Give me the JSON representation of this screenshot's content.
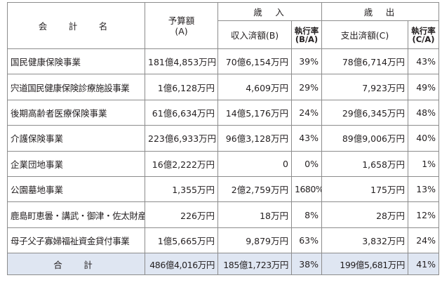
{
  "header": {
    "name": "会　計　名",
    "budget_line1": "予算額",
    "budget_line2": "(A)",
    "revenue_group": "歳　入",
    "expenditure_group": "歳　出",
    "revenue_received": "収入済額(B)",
    "revenue_rate_line1": "執行率",
    "revenue_rate_line2": "(B/A)",
    "expenditure_paid": "支出済額(C)",
    "expenditure_rate_line1": "執行率",
    "expenditure_rate_line2": "(C/A)"
  },
  "rows": [
    {
      "name": "国民健康保険事業",
      "budget": "181億4,853万円",
      "revenue": "70億6,154万円",
      "revenue_rate": "39%",
      "expenditure": "78億6,714万円",
      "expenditure_rate": "43%"
    },
    {
      "name": "宍道国民健康保険診療施設事業",
      "budget": "1億6,128万円",
      "revenue": "4,609万円",
      "revenue_rate": "29%",
      "expenditure": "7,923万円",
      "expenditure_rate": "49%"
    },
    {
      "name": "後期高齢者医療保険事業",
      "budget": "61億6,634万円",
      "revenue": "14億5,176万円",
      "revenue_rate": "24%",
      "expenditure": "29億6,345万円",
      "expenditure_rate": "48%"
    },
    {
      "name": "介護保険事業",
      "budget": "223億6,933万円",
      "revenue": "96億3,128万円",
      "revenue_rate": "43%",
      "expenditure": "89億9,006万円",
      "expenditure_rate": "40%"
    },
    {
      "name": "企業団地事業",
      "budget": "16億2,222万円",
      "revenue": "0",
      "revenue_rate": "0%",
      "expenditure": "1,658万円",
      "expenditure_rate": "1%"
    },
    {
      "name": "公園墓地事業",
      "budget": "1,355万円",
      "revenue": "2億2,759万円",
      "revenue_rate": "1680%",
      "expenditure": "175万円",
      "expenditure_rate": "13%"
    },
    {
      "name": "鹿島町恵曇・講武・御津・佐太財産区",
      "budget": "226万円",
      "revenue": "18万円",
      "revenue_rate": "8%",
      "expenditure": "28万円",
      "expenditure_rate": "12%"
    },
    {
      "name": "母子父子寡婦福祉資金貸付事業",
      "budget": "1億5,665万円",
      "revenue": "9,879万円",
      "revenue_rate": "63%",
      "expenditure": "3,832万円",
      "expenditure_rate": "24%"
    }
  ],
  "total": {
    "name": "合　計",
    "budget": "486億4,016万円",
    "revenue": "185億1,723万円",
    "revenue_rate": "38%",
    "expenditure": "199億5,681万円",
    "expenditure_rate": "41%"
  },
  "colors": {
    "border": "#8c8c8c",
    "total_row_background": "#dfe6f2",
    "text": "#231f20"
  }
}
